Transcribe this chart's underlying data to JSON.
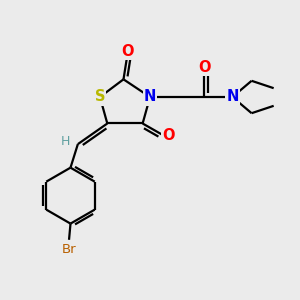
{
  "bg_color": "#ebebeb",
  "atom_colors": {
    "S": "#b8b800",
    "N": "#0000ee",
    "O": "#ff0000",
    "Br": "#b86000",
    "C": "#000000",
    "H": "#60a0a0"
  },
  "bond_color": "#000000",
  "bond_width": 1.6,
  "figsize": [
    3.0,
    3.0
  ],
  "dpi": 100
}
